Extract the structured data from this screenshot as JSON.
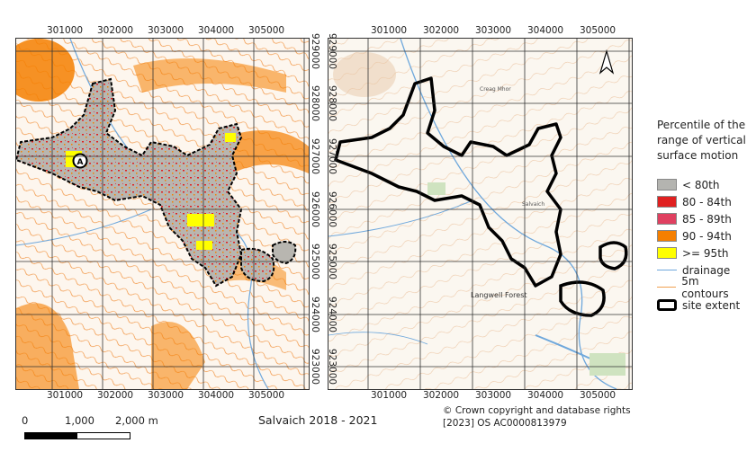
{
  "left_map": {
    "x_ticks": [
      "301000",
      "302000",
      "303000",
      "304000",
      "305000"
    ],
    "y_ticks": [
      "929000",
      "928000",
      "927000",
      "926000",
      "925000",
      "924000",
      "923000"
    ],
    "marker_label": "A"
  },
  "right_map": {
    "x_ticks": [
      "301000",
      "302000",
      "303000",
      "304000",
      "305000"
    ],
    "y_ticks": [
      "929000",
      "928000",
      "927000",
      "926000",
      "925000",
      "924000",
      "923000"
    ],
    "place_labels": [
      "Langwell Forest",
      "Creag Mhor",
      "Salvaich"
    ],
    "north_arrow": "north-arrow-icon"
  },
  "legend": {
    "title": "Percentile of the range of vertical surface motion",
    "items": [
      {
        "label": "< 80th",
        "color": "#b4b4b0",
        "kind": "fill"
      },
      {
        "label": "80 - 84th",
        "color": "#e02020",
        "kind": "fill"
      },
      {
        "label": "85 - 89th",
        "color": "#e04060",
        "kind": "fill"
      },
      {
        "label": "90 - 94th",
        "color": "#f57f00",
        "kind": "fill"
      },
      {
        "label": ">= 95th",
        "color": "#ffff00",
        "kind": "fill"
      },
      {
        "label": "drainage",
        "color": "#6fa8dc",
        "kind": "line"
      },
      {
        "label": "5m contours",
        "color": "#f0a050",
        "kind": "line"
      },
      {
        "label": "site extent",
        "color": "#000000",
        "kind": "outline"
      }
    ]
  },
  "scale_bar": {
    "labels": [
      "0",
      "1,000",
      "2,000 m"
    ]
  },
  "caption": "Salvaich 2018 - 2021",
  "copyright": "© Crown copyright and database rights [2023] OS AC0000813979"
}
